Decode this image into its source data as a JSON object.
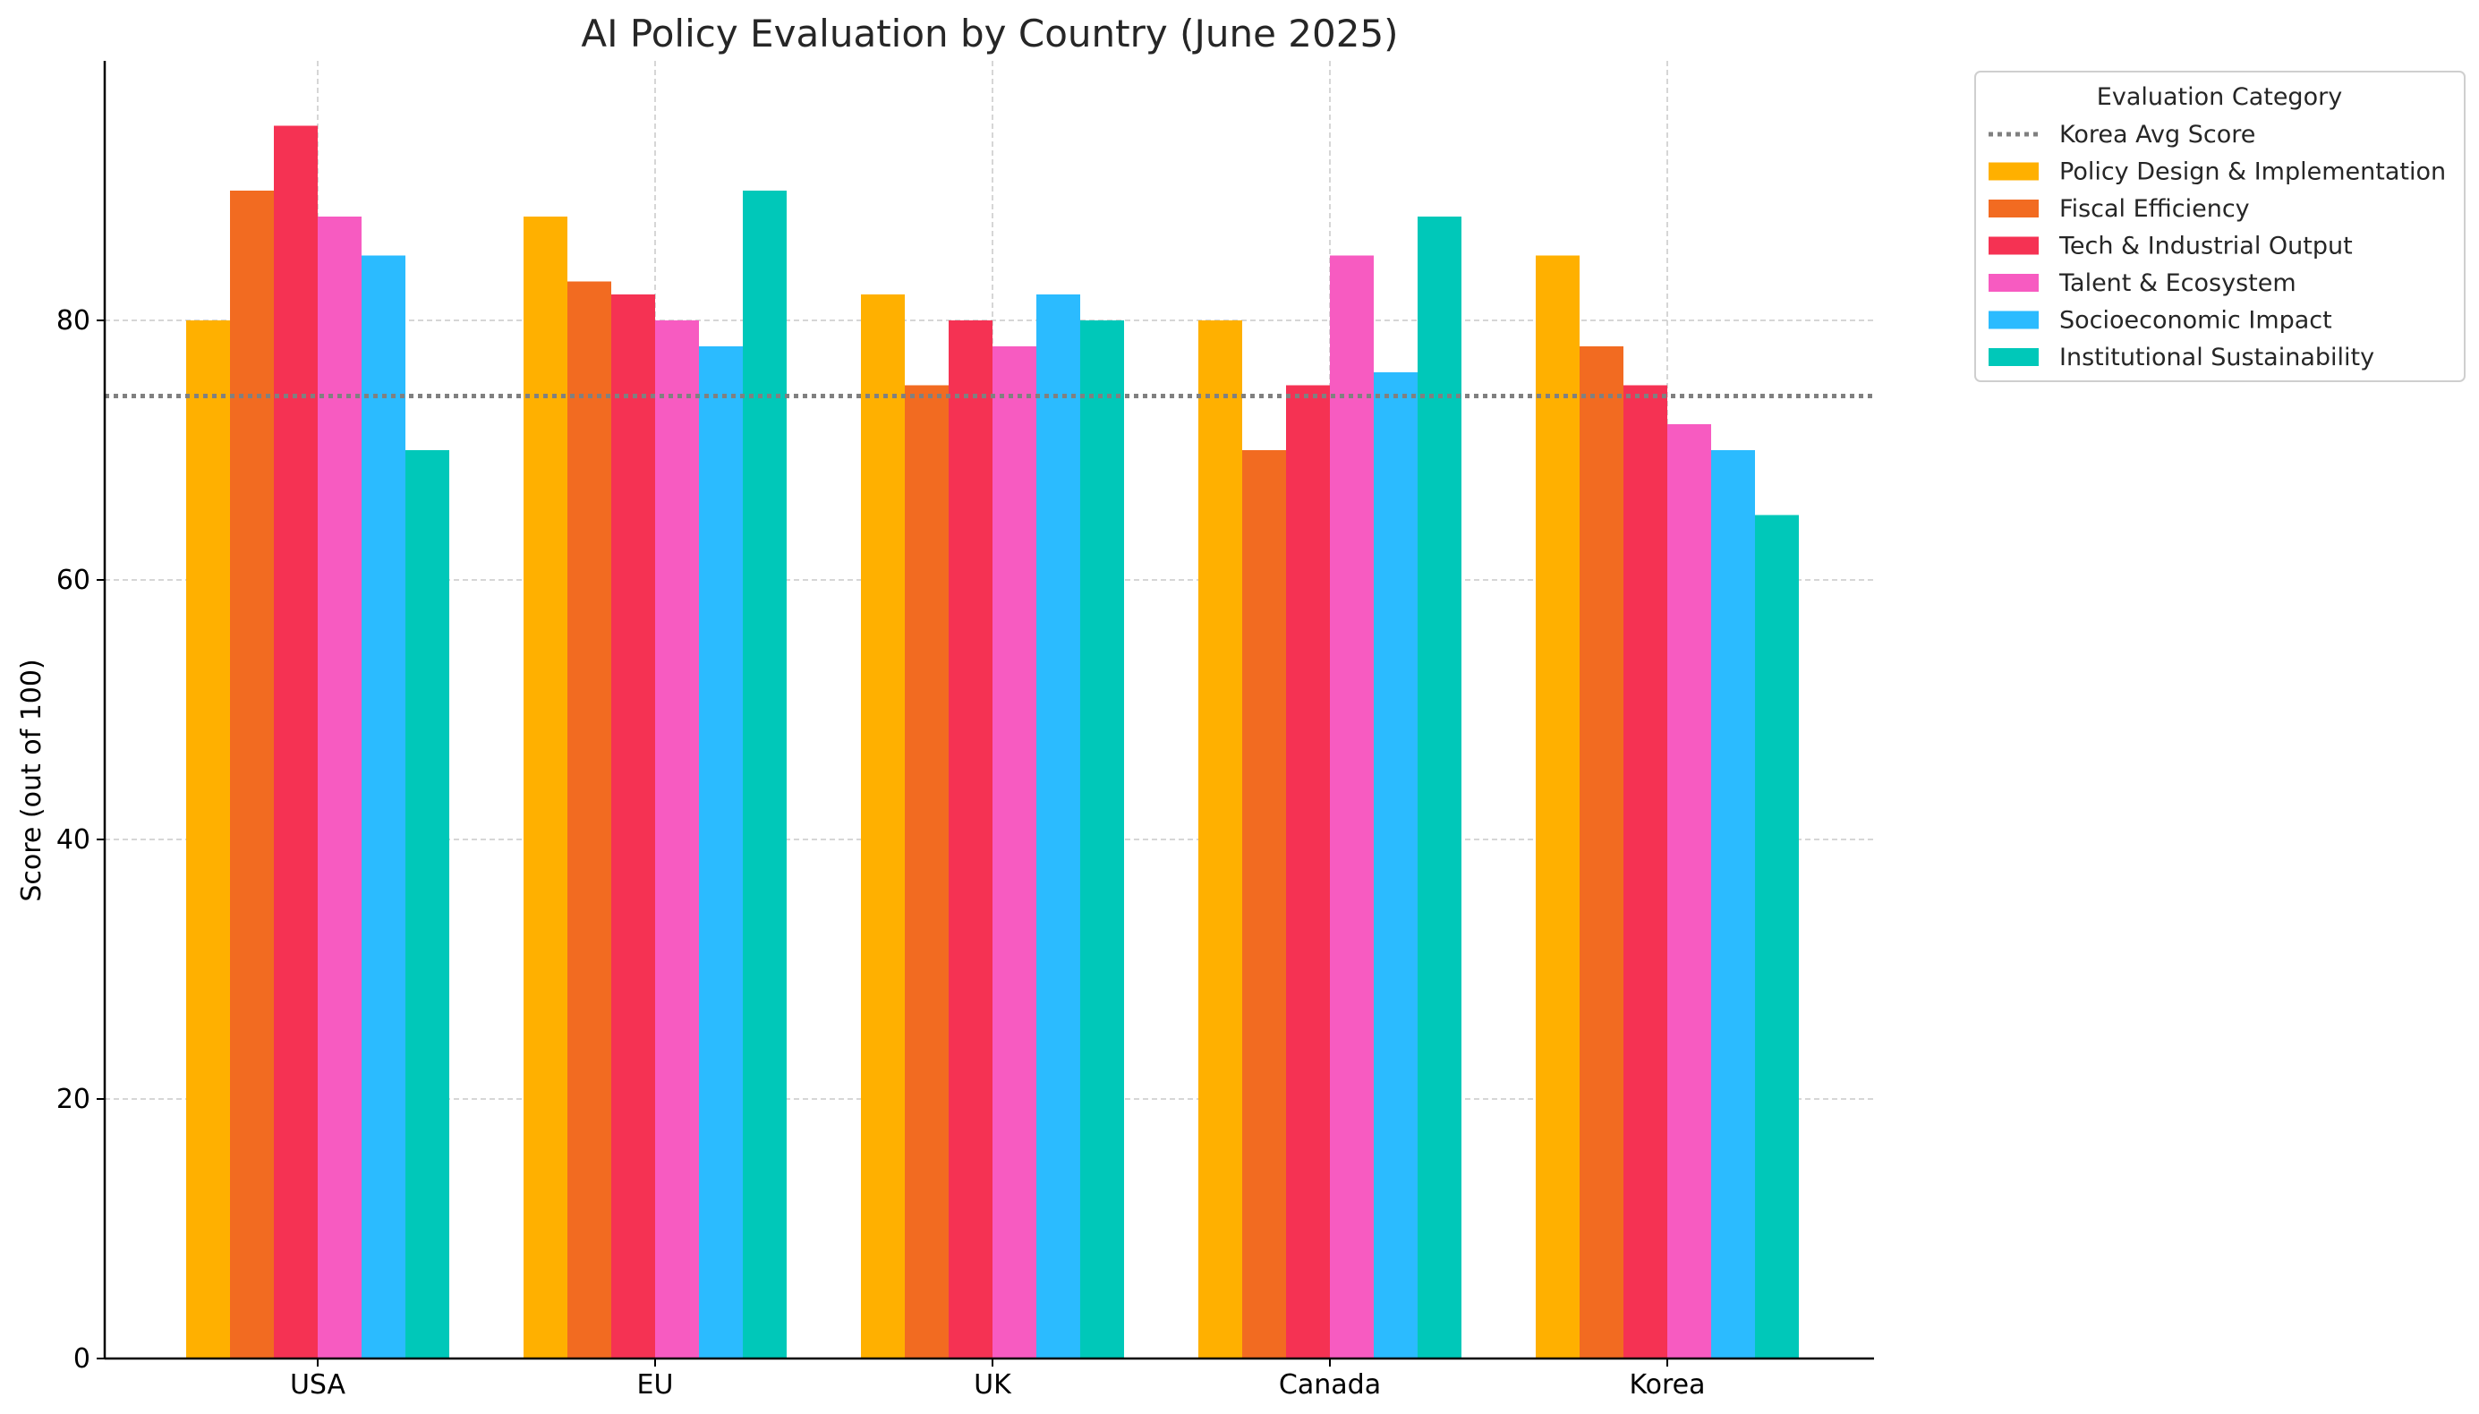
{
  "chart_data": {
    "type": "bar",
    "title": "AI Policy Evaluation by Country (June 2025)",
    "xlabel": "",
    "ylabel": "Score (out of 100)",
    "ylim": [
      0,
      100
    ],
    "yticks": [
      0,
      20,
      40,
      60,
      80
    ],
    "grid": true,
    "legend_position": "outside-top-right",
    "legend_title": "Evaluation Category",
    "categories": [
      "USA",
      "EU",
      "UK",
      "Canada",
      "Korea"
    ],
    "series": [
      {
        "name": "Policy Design & Implementation",
        "color": "#FFB000",
        "values": [
          80,
          88,
          82,
          80,
          85
        ]
      },
      {
        "name": "Fiscal Efficiency",
        "color": "#F26B21",
        "values": [
          90,
          83,
          75,
          70,
          78
        ]
      },
      {
        "name": "Tech & Industrial Output",
        "color": "#F53253",
        "values": [
          95,
          82,
          80,
          75,
          75
        ]
      },
      {
        "name": "Talent & Ecosystem",
        "color": "#F75BC1",
        "values": [
          88,
          80,
          78,
          85,
          72
        ]
      },
      {
        "name": "Socioeconomic Impact",
        "color": "#2BBBFF",
        "values": [
          85,
          78,
          82,
          76,
          70
        ]
      },
      {
        "name": "Institutional Sustainability",
        "color": "#00C8B9",
        "values": [
          70,
          90,
          80,
          88,
          65
        ]
      }
    ],
    "reference_line": {
      "name": "Korea Avg Score",
      "value": 74.17,
      "color": "#808080",
      "style": "dotted"
    }
  }
}
